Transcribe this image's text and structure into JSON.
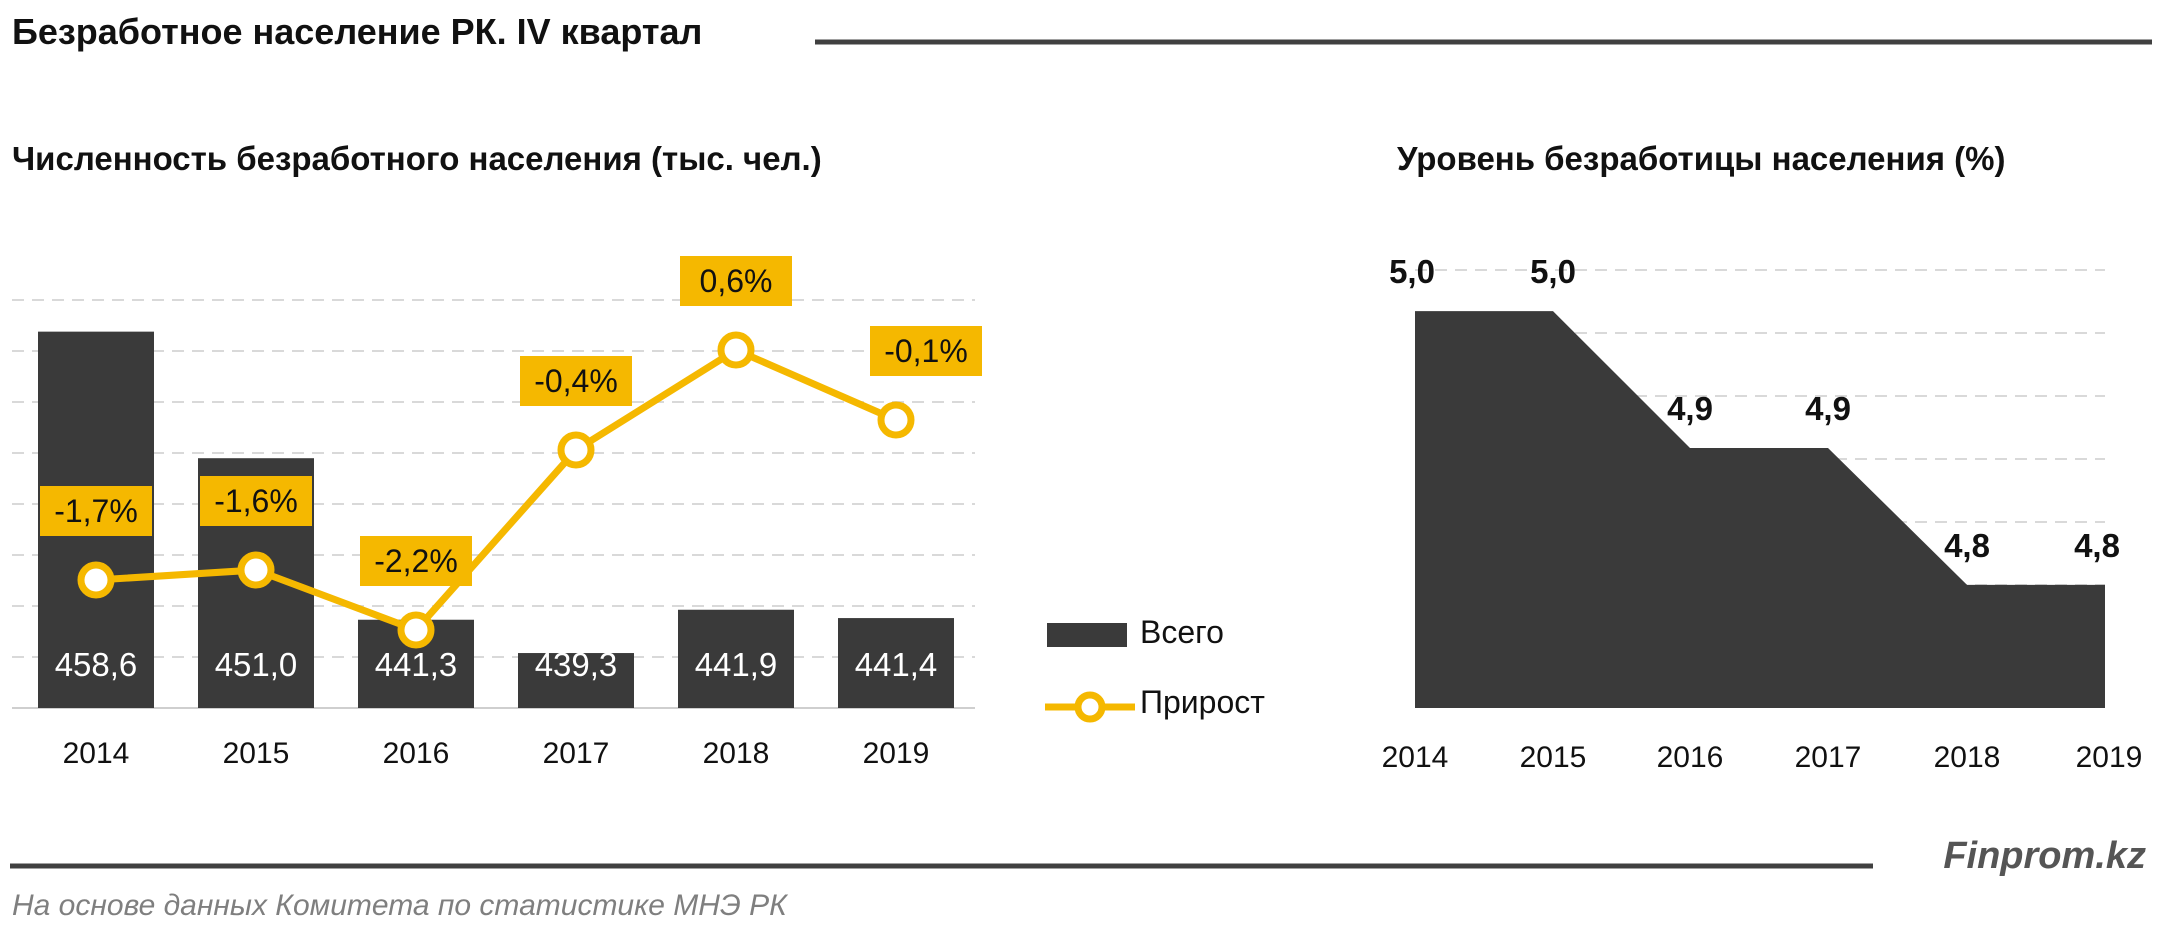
{
  "header": {
    "title": "Безработное население РК. IV квартал"
  },
  "footer": {
    "source": "На основе данных Комитета по статистике МНЭ РК",
    "brand": "Finprom.kz"
  },
  "colors": {
    "bar": "#3a3a3a",
    "accent": "#f5b800",
    "text": "#111111",
    "grid": "#d9d9d9",
    "rule": "#404040",
    "muted": "#7f7f7f"
  },
  "chart_data": [
    {
      "type": "bar",
      "title": "Численность безработного населения (тыс. чел.)",
      "categories": [
        "2014",
        "2015",
        "2016",
        "2017",
        "2018",
        "2019"
      ],
      "ylim": [
        436,
        460.5
      ],
      "series": [
        {
          "name": "Всего",
          "kind": "bar",
          "values": [
            458.6,
            451.0,
            441.3,
            439.3,
            441.9,
            441.4
          ],
          "labels": [
            "458,6",
            "451,0",
            "441,3",
            "439,3",
            "441,9",
            "441,4"
          ]
        },
        {
          "name": "Прирост",
          "kind": "line",
          "values": [
            -1.7,
            -1.6,
            -2.2,
            -0.4,
            0.6,
            -0.1
          ],
          "labels": [
            "-1,7%",
            "-1,6%",
            "-2,2%",
            "-0,4%",
            "0,6%",
            "-0,1%"
          ]
        }
      ],
      "secondary_ylim": [
        -3.5,
        1.3
      ],
      "grid": true,
      "legend": "right"
    },
    {
      "type": "area",
      "title": "Уровень безработицы населения (%)",
      "categories": [
        "2014",
        "2015",
        "2016",
        "2017",
        "2018",
        "2019"
      ],
      "values": [
        5.0,
        5.0,
        4.9,
        4.9,
        4.8,
        4.8
      ],
      "labels": [
        "5,0",
        "5,0",
        "4,9",
        "4,9",
        "4,8",
        "4,8"
      ],
      "ylim": [
        4.71,
        5.03
      ],
      "grid": true
    }
  ]
}
